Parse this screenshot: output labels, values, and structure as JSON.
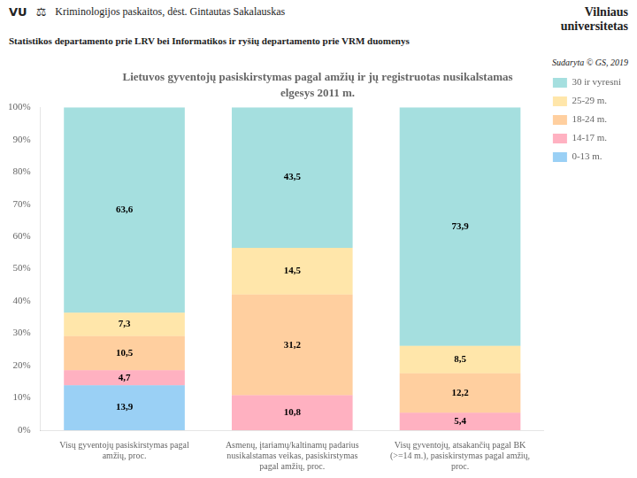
{
  "chart_data": {
    "type": "bar",
    "stacked": true,
    "title": "Lietuvos gyventojų pasiskirstymas pagal amžių ir jų registruotas nusikalstamas",
    "subtitle": "elgesys 2011 m.",
    "annotations": [
      "VU",
      "⚖",
      "Kriminologijos paskaitos, dėst. Gintautas Sakalauskas",
      "Vilniaus\nuniversitetas",
      "Statistikos departamento prie LRV bei Informatikos ir ryšių departamento prie VRM duomenys",
      "Sudaryta © GS, 2019"
    ],
    "categories": [
      "Visų gyventojų pasiskirstymas pagal\namžių, proc.",
      "Asmenų, įtariamų/kaltinamų padarius\nnusikalstamas veikas, pasiskirstymas\npagal amžių, proc.",
      "Visų gyventojų, atsakančių pagal BK\n(>=14 m.), pasiskirstymas pagal amžių,\nproc."
    ],
    "series": [
      {
        "name": "0-13 m.",
        "values": [
          13.9,
          0.0,
          0.0
        ],
        "value_labels": [
          "13,9",
          null,
          null
        ]
      },
      {
        "name": "14-17 m.",
        "values": [
          4.7,
          10.8,
          5.4
        ],
        "value_labels": [
          "4,7",
          "10,8",
          "5,4"
        ]
      },
      {
        "name": "18-24 m.",
        "values": [
          10.5,
          31.2,
          12.2
        ],
        "value_labels": [
          "10,5",
          "31,2",
          "12,2"
        ]
      },
      {
        "name": "25-29 m.",
        "values": [
          7.3,
          14.5,
          8.5
        ],
        "value_labels": [
          "7,3",
          "14,5",
          "8,5"
        ]
      },
      {
        "name": "30 ir vyresni",
        "values": [
          63.6,
          43.5,
          73.9
        ],
        "value_labels": [
          "63,6",
          "43,5",
          "73,9"
        ]
      }
    ],
    "ylim": [
      0,
      100
    ],
    "yticks": [
      {
        "value": 0,
        "label": "0%"
      },
      {
        "value": 10,
        "label": "10%"
      },
      {
        "value": 20,
        "label": "20%"
      },
      {
        "value": 30,
        "label": "30%"
      },
      {
        "value": 40,
        "label": "40%"
      },
      {
        "value": 50,
        "label": "50%"
      },
      {
        "value": 60,
        "label": "60%"
      },
      {
        "value": 70,
        "label": "70%"
      },
      {
        "value": 80,
        "label": "80%"
      },
      {
        "value": 90,
        "label": "90%"
      },
      {
        "value": 100,
        "label": "100%"
      }
    ],
    "grid": false,
    "legend": "upper right",
    "data_labels": true
  }
}
